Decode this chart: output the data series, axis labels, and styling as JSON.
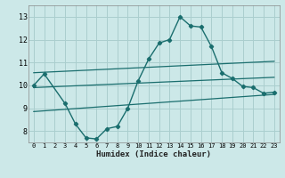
{
  "xlabel": "Humidex (Indice chaleur)",
  "xlim": [
    -0.5,
    23.5
  ],
  "ylim": [
    7.5,
    13.5
  ],
  "yticks": [
    8,
    9,
    10,
    11,
    12,
    13
  ],
  "xticks": [
    0,
    1,
    2,
    3,
    4,
    5,
    6,
    7,
    8,
    9,
    10,
    11,
    12,
    13,
    14,
    15,
    16,
    17,
    18,
    19,
    20,
    21,
    22,
    23
  ],
  "bg_color": "#cce8e8",
  "grid_color": "#aacece",
  "line_color": "#1a6e6e",
  "lines": [
    {
      "x": [
        0,
        1,
        3,
        4,
        5,
        6,
        7,
        8,
        9,
        10,
        11,
        12,
        13,
        14,
        15,
        16,
        17,
        18,
        19,
        20,
        21,
        22,
        23
      ],
      "y": [
        10.0,
        10.5,
        9.2,
        8.3,
        7.7,
        7.65,
        8.1,
        8.2,
        9.0,
        10.2,
        11.15,
        11.85,
        12.0,
        13.0,
        12.6,
        12.55,
        11.7,
        10.55,
        10.3,
        9.95,
        9.9,
        9.65,
        9.7
      ],
      "has_markers": true
    },
    {
      "x": [
        0,
        23
      ],
      "y": [
        10.55,
        11.05
      ],
      "has_markers": false
    },
    {
      "x": [
        0,
        23
      ],
      "y": [
        9.9,
        10.35
      ],
      "has_markers": false
    },
    {
      "x": [
        0,
        23
      ],
      "y": [
        8.85,
        9.6
      ],
      "has_markers": false
    }
  ]
}
